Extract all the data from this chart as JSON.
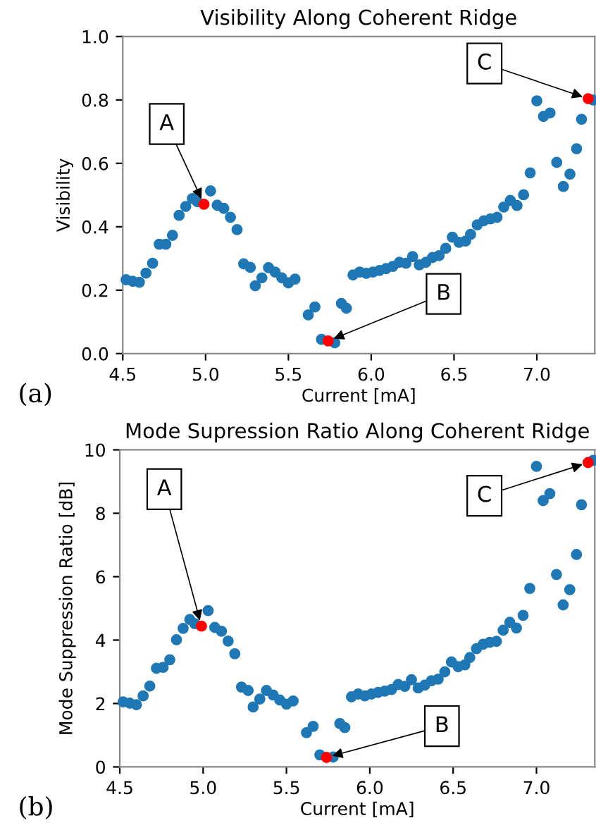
{
  "chart_data": [
    {
      "type": "scatter",
      "title": "Visibility Along Coherent Ridge",
      "xlabel": "Current [mA]",
      "ylabel": "Visibility",
      "x": [
        4.52,
        4.56,
        4.6,
        4.64,
        4.68,
        4.72,
        4.76,
        4.8,
        4.84,
        4.88,
        4.92,
        4.95,
        4.99,
        5.03,
        5.07,
        5.11,
        5.15,
        5.19,
        5.23,
        5.27,
        5.3,
        5.34,
        5.38,
        5.42,
        5.46,
        5.5,
        5.54,
        5.62,
        5.66,
        5.7,
        5.74,
        5.78,
        5.82,
        5.85,
        5.89,
        5.93,
        5.97,
        6.01,
        6.05,
        6.09,
        6.13,
        6.17,
        6.21,
        6.25,
        6.29,
        6.33,
        6.37,
        6.41,
        6.45,
        6.49,
        6.53,
        6.57,
        6.6,
        6.64,
        6.68,
        6.72,
        6.76,
        6.8,
        6.84,
        6.88,
        6.92,
        6.96,
        7.0,
        7.04,
        7.08,
        7.12,
        7.16,
        7.2,
        7.24,
        7.27,
        7.31,
        7.34
      ],
      "series": [
        {
          "color": "#1f77b4",
          "values": [
            0.233,
            0.228,
            0.225,
            0.254,
            0.285,
            0.345,
            0.345,
            0.373,
            0.436,
            0.464,
            0.489,
            0.479,
            null,
            0.513,
            0.468,
            0.458,
            0.43,
            0.391,
            0.283,
            0.272,
            0.214,
            0.239,
            0.271,
            0.257,
            0.239,
            0.223,
            0.235,
            0.122,
            0.147,
            0.045,
            null,
            0.034,
            0.158,
            0.143,
            0.248,
            0.257,
            0.253,
            0.257,
            0.262,
            0.268,
            0.275,
            0.288,
            0.285,
            0.306,
            0.28,
            0.288,
            0.303,
            0.309,
            0.332,
            0.367,
            0.351,
            0.355,
            0.376,
            0.406,
            0.419,
            0.425,
            0.43,
            0.462,
            0.483,
            0.467,
            0.501,
            0.57,
            0.797,
            0.748,
            0.759,
            0.603,
            0.527,
            0.566,
            0.646,
            0.739,
            null,
            0.8
          ]
        },
        {
          "color": "#ff0000",
          "x": [
            4.99,
            5.74,
            7.31
          ],
          "values": [
            0.471,
            0.04,
            0.804
          ]
        }
      ],
      "marker": "circle",
      "xlim": [
        4.5,
        7.35
      ],
      "ylim": [
        0.0,
        1.0
      ],
      "xticks": [
        4.5,
        {
          "value": 5,
          "label": "5.0"
        },
        5.5,
        {
          "value": 6,
          "label": "6.0"
        },
        6.5,
        {
          "value": 7,
          "label": "7.0"
        }
      ],
      "yticks": [
        {
          "value": 0,
          "label": "0.0"
        },
        0.2,
        0.4,
        0.6,
        0.8,
        {
          "value": 1,
          "label": "1.0"
        }
      ],
      "grid": false,
      "annotations": [
        {
          "text": "A",
          "x": 4.99,
          "y": 0.471
        },
        {
          "text": "B",
          "x": 5.74,
          "y": 0.04
        },
        {
          "text": "C",
          "x": 7.31,
          "y": 0.804
        },
        "(a)"
      ]
    },
    {
      "type": "scatter",
      "title": "Mode Supression Ratio Along Coherent Ridge",
      "xlabel": "Current [mA]",
      "ylabel": "Mode Suppression Ratio [dB]",
      "x": [
        4.52,
        4.56,
        4.6,
        4.64,
        4.68,
        4.72,
        4.76,
        4.8,
        4.84,
        4.88,
        4.92,
        4.95,
        4.99,
        5.03,
        5.07,
        5.11,
        5.15,
        5.19,
        5.23,
        5.27,
        5.3,
        5.34,
        5.38,
        5.42,
        5.46,
        5.5,
        5.54,
        5.62,
        5.66,
        5.7,
        5.74,
        5.78,
        5.82,
        5.85,
        5.89,
        5.93,
        5.97,
        6.01,
        6.05,
        6.09,
        6.13,
        6.17,
        6.21,
        6.25,
        6.29,
        6.33,
        6.37,
        6.41,
        6.45,
        6.49,
        6.53,
        6.57,
        6.6,
        6.64,
        6.68,
        6.72,
        6.76,
        6.8,
        6.84,
        6.88,
        6.92,
        6.96,
        7.0,
        7.04,
        7.08,
        7.12,
        7.16,
        7.2,
        7.24,
        7.27,
        7.31,
        7.34
      ],
      "series": [
        {
          "color": "#1f77b4",
          "values": [
            2.05,
            2.01,
            1.96,
            2.24,
            2.55,
            3.11,
            3.14,
            3.38,
            4.01,
            4.37,
            4.65,
            4.52,
            null,
            4.93,
            4.4,
            4.28,
            3.97,
            3.57,
            2.52,
            2.41,
            1.89,
            2.14,
            2.41,
            2.27,
            2.11,
            1.98,
            2.08,
            1.08,
            1.28,
            0.38,
            null,
            0.31,
            1.37,
            1.24,
            2.21,
            2.3,
            2.24,
            2.3,
            2.35,
            2.39,
            2.44,
            2.6,
            2.54,
            2.75,
            2.49,
            2.58,
            2.72,
            2.77,
            3.0,
            3.31,
            3.16,
            3.22,
            3.45,
            3.73,
            3.87,
            3.93,
            3.96,
            4.31,
            4.56,
            4.38,
            4.78,
            5.63,
            9.48,
            8.4,
            8.62,
            6.07,
            5.11,
            5.59,
            6.7,
            8.27,
            null,
            9.67
          ]
        },
        {
          "color": "#ff0000",
          "x": [
            4.99,
            5.74,
            7.31
          ],
          "values": [
            4.44,
            0.3,
            9.6
          ]
        }
      ],
      "marker": "circle",
      "xlim": [
        4.5,
        7.35
      ],
      "ylim": [
        0,
        10
      ],
      "xticks": [
        4.5,
        {
          "value": 5,
          "label": "5.0"
        },
        5.5,
        {
          "value": 6,
          "label": "6.0"
        },
        6.5,
        {
          "value": 7,
          "label": "7.0"
        }
      ],
      "yticks": [
        0,
        2,
        4,
        6,
        8,
        10
      ],
      "grid": false,
      "annotations": [
        {
          "text": "A",
          "x": 4.99,
          "y": 4.44
        },
        {
          "text": "B",
          "x": 5.74,
          "y": 0.3
        },
        {
          "text": "C",
          "x": 7.31,
          "y": 9.6
        },
        "(b)"
      ]
    }
  ]
}
